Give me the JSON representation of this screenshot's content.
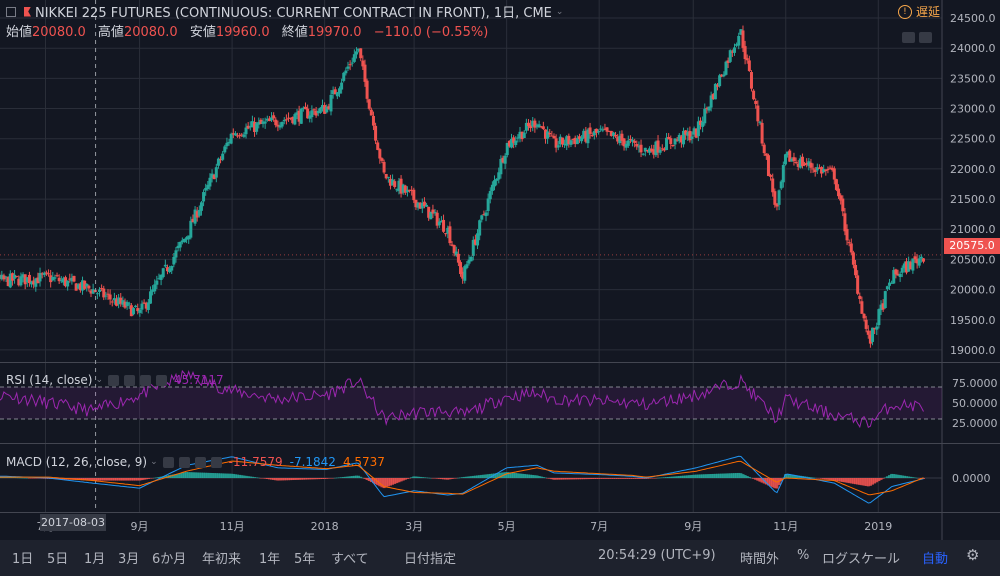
{
  "header": {
    "title": "NIKKEI 225 FUTURES (CONTINUOUS: CURRENT CONTRACT IN FRONT), 1日, CME",
    "delay_label": "遅延"
  },
  "ohlc": {
    "open_label": "始値",
    "open": "20080.0",
    "high_label": "高値",
    "high": "20080.0",
    "low_label": "安値",
    "low": "19960.0",
    "close_label": "終値",
    "close": "19970.0",
    "change": "−110.0 (−0.55%)"
  },
  "last_price": "20575.0",
  "crosshair_date": "2017-08-03",
  "price_ticks": [
    "24500.0",
    "24000.0",
    "23500.0",
    "23000.0",
    "22500.0",
    "22000.0",
    "21500.0",
    "21000.0",
    "20500.0",
    "20000.0",
    "19500.0",
    "19000.0"
  ],
  "time_ticks": [
    "7月",
    "9月",
    "11月",
    "2018",
    "3月",
    "5月",
    "7月",
    "9月",
    "11月",
    "2019"
  ],
  "rsi": {
    "label": "RSI (14, close)",
    "value": "45.7117",
    "ticks": [
      "75.0000",
      "50.0000",
      "25.0000"
    ],
    "color": "#9c27b0"
  },
  "macd": {
    "label": "MACD (12, 26, close, 9)",
    "hist": "-11.7579",
    "macd": "-7.1842",
    "signal": "4.5737",
    "tick": "0.0000",
    "hist_color": "#ef5350",
    "macd_color": "#2196f3",
    "signal_color": "#ff6d00"
  },
  "colors": {
    "up": "#26a69a",
    "down": "#ef5350",
    "bg": "#131722"
  },
  "toolbar": {
    "ranges": [
      "1日",
      "5日",
      "1月",
      "3月",
      "6か月",
      "年初来",
      "1年",
      "5年",
      "すべて"
    ],
    "goto_date": "日付指定",
    "clock": "20:54:29 (UTC+9)",
    "extended": "時間外",
    "percent": "%",
    "log": "ログスケール",
    "auto": "自動",
    "settings_icon": "gear-icon"
  },
  "chart_data": {
    "type": "candlestick",
    "title": "NIKKEI 225 FUTURES (CONTINUOUS: CURRENT CONTRACT IN FRONT), 1日, CME",
    "x": [
      "2017-06-05",
      "2017-07-03",
      "2017-08-01",
      "2017-09-01",
      "2017-10-02",
      "2017-11-01",
      "2017-12-01",
      "2018-01-02",
      "2018-01-23",
      "2018-02-09",
      "2018-03-01",
      "2018-03-23",
      "2018-04-02",
      "2018-05-01",
      "2018-05-21",
      "2018-06-01",
      "2018-07-02",
      "2018-07-23",
      "2018-08-01",
      "2018-09-03",
      "2018-10-02",
      "2018-10-26",
      "2018-11-01",
      "2018-12-03",
      "2018-12-26",
      "2019-01-10",
      "2019-01-31"
    ],
    "close": [
      20150,
      20200,
      20000,
      19600,
      20900,
      22600,
      22800,
      23000,
      24000,
      21900,
      21500,
      21000,
      20200,
      22400,
      22800,
      22400,
      22600,
      22400,
      22300,
      22600,
      24300,
      21300,
      22200,
      21900,
      19100,
      20200,
      20575
    ],
    "ylim": [
      18800,
      24600
    ],
    "rsi": {
      "values": [
        60,
        50,
        40,
        60,
        85,
        65,
        55,
        60,
        78,
        30,
        38,
        40,
        35,
        58,
        62,
        55,
        52,
        50,
        48,
        60,
        78,
        30,
        55,
        35,
        25,
        48,
        46
      ],
      "ylim": [
        0,
        100
      ]
    },
    "macd": {
      "macd": [
        20,
        0,
        -60,
        -120,
        150,
        250,
        120,
        100,
        180,
        -220,
        -150,
        -200,
        -180,
        120,
        150,
        60,
        40,
        20,
        0,
        120,
        260,
        -180,
        50,
        -60,
        -300,
        -100,
        -7.18
      ],
      "signal": [
        10,
        10,
        -30,
        -90,
        80,
        200,
        150,
        110,
        150,
        -100,
        -170,
        -180,
        -190,
        50,
        120,
        80,
        50,
        30,
        10,
        80,
        200,
        -50,
        0,
        -30,
        -200,
        -150,
        4.57
      ],
      "ylim": [
        -400,
        400
      ]
    }
  }
}
